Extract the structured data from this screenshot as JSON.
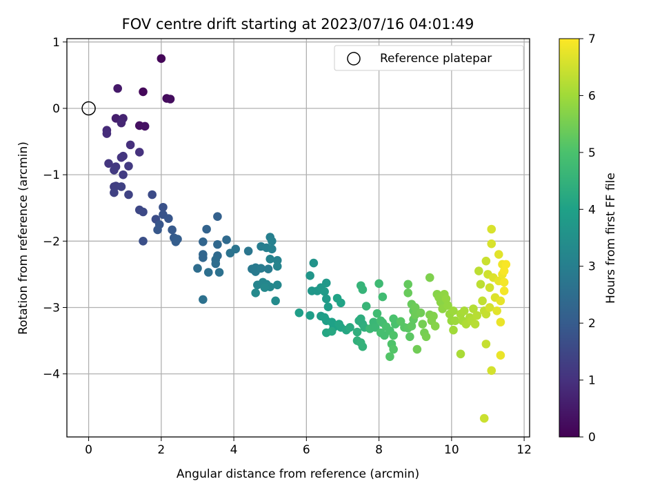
{
  "chart_data": {
    "type": "scatter",
    "title": "FOV centre drift starting at 2023/07/16 04:01:49",
    "xlabel": "Angular distance from reference (arcmin)",
    "ylabel": "Rotation from reference (arcmin)",
    "xlim": [
      -0.6,
      12.15
    ],
    "ylim": [
      -4.95,
      1.05
    ],
    "xticks": [
      0,
      2,
      4,
      6,
      8,
      10,
      12
    ],
    "xtick_labels": [
      "0",
      "2",
      "4",
      "6",
      "8",
      "10",
      "12"
    ],
    "yticks": [
      1,
      0,
      -1,
      -2,
      -3,
      -4
    ],
    "ytick_labels": [
      "1",
      "0",
      "−1",
      "−2",
      "−3",
      "−4"
    ],
    "grid": true,
    "legend": {
      "placement": "upper-right",
      "entries": [
        "Reference platepar"
      ]
    },
    "reference_point": {
      "x": 0,
      "y": 0
    },
    "colorbar": {
      "label": "Hours from first FF file",
      "colormap": "viridis",
      "range": [
        0,
        7
      ],
      "ticks": [
        0,
        1,
        2,
        3,
        4,
        5,
        6,
        7
      ],
      "tick_labels": [
        "0",
        "1",
        "2",
        "3",
        "4",
        "5",
        "6",
        "7"
      ]
    },
    "series": [
      {
        "points": [
          [
            2.0,
            0.75,
            0.1
          ],
          [
            1.5,
            0.25,
            0.15
          ],
          [
            2.15,
            0.15,
            0.2
          ],
          [
            2.25,
            0.14,
            0.25
          ],
          [
            1.4,
            -0.26,
            0.3
          ],
          [
            1.55,
            -0.27,
            0.35
          ],
          [
            0.8,
            0.3,
            0.5
          ],
          [
            0.75,
            -0.15,
            0.6
          ],
          [
            0.9,
            -0.2,
            0.65
          ],
          [
            0.95,
            -0.15,
            0.7
          ],
          [
            0.9,
            -0.22,
            0.75
          ],
          [
            0.5,
            -0.33,
            0.85
          ],
          [
            0.5,
            -0.38,
            0.9
          ],
          [
            1.15,
            -0.55,
            0.95
          ],
          [
            1.4,
            -0.66,
            1.0
          ],
          [
            0.9,
            -0.74,
            1.05
          ],
          [
            0.95,
            -0.72,
            1.1
          ],
          [
            0.55,
            -0.83,
            1.1
          ],
          [
            0.75,
            -0.88,
            1.15
          ],
          [
            0.7,
            -0.93,
            1.2
          ],
          [
            1.1,
            -0.87,
            1.2
          ],
          [
            0.95,
            -1.0,
            1.25
          ],
          [
            0.7,
            -1.18,
            1.3
          ],
          [
            0.75,
            -1.17,
            1.3
          ],
          [
            0.9,
            -1.18,
            1.35
          ],
          [
            0.7,
            -1.27,
            1.35
          ],
          [
            1.1,
            -1.3,
            1.4
          ],
          [
            1.4,
            -1.53,
            1.5
          ],
          [
            1.5,
            -1.56,
            1.55
          ],
          [
            1.75,
            -1.3,
            1.6
          ],
          [
            1.85,
            -1.67,
            1.65
          ],
          [
            1.5,
            -2.0,
            1.7
          ],
          [
            2.05,
            -1.49,
            1.75
          ],
          [
            2.05,
            -1.6,
            1.8
          ],
          [
            2.2,
            -1.66,
            1.85
          ],
          [
            1.95,
            -1.75,
            1.85
          ],
          [
            1.9,
            -1.83,
            1.9
          ],
          [
            2.3,
            -1.83,
            1.95
          ],
          [
            2.35,
            -1.95,
            2.0
          ],
          [
            2.45,
            -1.97,
            2.05
          ],
          [
            2.4,
            -2.01,
            2.05
          ],
          [
            3.55,
            -1.63,
            2.15
          ],
          [
            3.25,
            -1.82,
            2.2
          ],
          [
            3.15,
            -2.01,
            2.25
          ],
          [
            3.15,
            -2.2,
            2.3
          ],
          [
            3.15,
            -2.25,
            2.3
          ],
          [
            3.55,
            -2.05,
            2.35
          ],
          [
            3.8,
            -1.98,
            2.4
          ],
          [
            3.55,
            -2.22,
            2.4
          ],
          [
            3.5,
            -2.28,
            2.45
          ],
          [
            3.5,
            -2.34,
            2.5
          ],
          [
            3.0,
            -2.41,
            2.5
          ],
          [
            3.3,
            -2.47,
            2.55
          ],
          [
            3.6,
            -2.47,
            2.6
          ],
          [
            3.15,
            -2.88,
            2.6
          ],
          [
            3.9,
            -2.18,
            2.65
          ],
          [
            4.05,
            -2.12,
            2.7
          ],
          [
            4.4,
            -2.15,
            2.75
          ],
          [
            4.5,
            -2.42,
            2.8
          ],
          [
            4.6,
            -2.4,
            2.85
          ],
          [
            4.6,
            -2.46,
            2.85
          ],
          [
            4.75,
            -2.41,
            2.9
          ],
          [
            4.95,
            -2.42,
            2.9
          ],
          [
            4.75,
            -2.08,
            2.95
          ],
          [
            4.9,
            -2.1,
            3.0
          ],
          [
            5.0,
            -1.94,
            3.0
          ],
          [
            5.05,
            -2.0,
            3.05
          ],
          [
            5.05,
            -2.12,
            3.05
          ],
          [
            5.0,
            -2.27,
            3.1
          ],
          [
            5.2,
            -2.29,
            3.1
          ],
          [
            5.2,
            -2.38,
            3.15
          ],
          [
            4.65,
            -2.66,
            3.15
          ],
          [
            4.8,
            -2.62,
            3.2
          ],
          [
            4.9,
            -2.65,
            3.2
          ],
          [
            5.0,
            -2.69,
            3.25
          ],
          [
            5.2,
            -2.66,
            3.25
          ],
          [
            4.85,
            -2.7,
            3.3
          ],
          [
            4.6,
            -2.78,
            3.3
          ],
          [
            5.15,
            -2.9,
            3.35
          ],
          [
            6.2,
            -2.33,
            3.6
          ],
          [
            6.1,
            -2.52,
            3.65
          ],
          [
            6.15,
            -2.75,
            3.7
          ],
          [
            6.3,
            -2.75,
            3.7
          ],
          [
            6.4,
            -2.7,
            3.75
          ],
          [
            6.55,
            -2.63,
            3.75
          ],
          [
            6.5,
            -2.76,
            3.8
          ],
          [
            6.55,
            -2.87,
            3.8
          ],
          [
            6.6,
            -2.99,
            3.85
          ],
          [
            6.4,
            -3.13,
            3.85
          ],
          [
            5.8,
            -3.08,
            3.9
          ],
          [
            6.1,
            -3.12,
            3.9
          ],
          [
            6.5,
            -3.15,
            3.95
          ],
          [
            6.55,
            -3.2,
            3.95
          ],
          [
            6.7,
            -3.22,
            4.0
          ],
          [
            6.75,
            -3.3,
            4.0
          ],
          [
            6.85,
            -2.86,
            4.05
          ],
          [
            6.95,
            -2.93,
            4.05
          ],
          [
            6.9,
            -3.25,
            4.1
          ],
          [
            6.95,
            -3.3,
            4.1
          ],
          [
            7.1,
            -3.34,
            4.15
          ],
          [
            6.55,
            -3.38,
            4.15
          ],
          [
            6.7,
            -3.36,
            4.2
          ],
          [
            7.2,
            -3.3,
            4.25
          ],
          [
            7.45,
            -3.2,
            4.3
          ],
          [
            7.5,
            -3.17,
            4.35
          ],
          [
            7.55,
            -3.25,
            4.35
          ],
          [
            7.6,
            -3.3,
            4.4
          ],
          [
            7.4,
            -3.37,
            4.4
          ],
          [
            7.4,
            -3.5,
            4.45
          ],
          [
            7.5,
            -3.53,
            4.5
          ],
          [
            7.55,
            -3.59,
            4.5
          ],
          [
            7.5,
            -2.67,
            4.55
          ],
          [
            7.55,
            -2.73,
            4.55
          ],
          [
            7.65,
            -2.98,
            4.6
          ],
          [
            7.85,
            -3.22,
            4.65
          ],
          [
            7.75,
            -3.32,
            4.7
          ],
          [
            7.9,
            -3.3,
            4.7
          ],
          [
            8.0,
            -2.64,
            4.75
          ],
          [
            8.1,
            -2.84,
            4.8
          ],
          [
            7.95,
            -3.09,
            4.8
          ],
          [
            8.05,
            -3.2,
            4.85
          ],
          [
            8.1,
            -3.23,
            4.85
          ],
          [
            8.05,
            -3.38,
            4.9
          ],
          [
            8.15,
            -3.42,
            4.9
          ],
          [
            8.2,
            -3.29,
            4.95
          ],
          [
            8.3,
            -3.35,
            4.95
          ],
          [
            8.4,
            -3.17,
            5.0
          ],
          [
            8.45,
            -3.25,
            5.0
          ],
          [
            8.4,
            -3.42,
            5.05
          ],
          [
            8.35,
            -3.55,
            5.05
          ],
          [
            8.3,
            -3.74,
            5.1
          ],
          [
            8.4,
            -3.63,
            5.1
          ],
          [
            8.6,
            -3.21,
            5.15
          ],
          [
            8.7,
            -3.3,
            5.15
          ],
          [
            8.8,
            -3.31,
            5.2
          ],
          [
            8.85,
            -3.44,
            5.2
          ],
          [
            8.9,
            -3.28,
            5.25
          ],
          [
            8.95,
            -3.18,
            5.25
          ],
          [
            8.95,
            -3.05,
            5.3
          ],
          [
            8.8,
            -2.65,
            5.3
          ],
          [
            8.8,
            -2.78,
            5.35
          ],
          [
            8.9,
            -2.95,
            5.35
          ],
          [
            9.0,
            -3.0,
            5.4
          ],
          [
            9.0,
            -3.11,
            5.4
          ],
          [
            9.05,
            -3.63,
            5.45
          ],
          [
            9.15,
            -3.08,
            5.45
          ],
          [
            9.2,
            -3.25,
            5.5
          ],
          [
            9.25,
            -3.38,
            5.5
          ],
          [
            9.3,
            -3.44,
            5.55
          ],
          [
            9.4,
            -2.55,
            5.6
          ],
          [
            9.4,
            -3.11,
            5.6
          ],
          [
            9.45,
            -3.2,
            5.65
          ],
          [
            9.5,
            -3.13,
            5.65
          ],
          [
            9.55,
            -3.28,
            5.7
          ],
          [
            9.6,
            -2.8,
            5.7
          ],
          [
            9.65,
            -2.85,
            5.75
          ],
          [
            9.7,
            -2.92,
            5.75
          ],
          [
            9.75,
            -3.02,
            5.8
          ],
          [
            9.8,
            -2.8,
            5.8
          ],
          [
            9.85,
            -2.87,
            5.85
          ],
          [
            9.9,
            -2.97,
            5.85
          ],
          [
            9.95,
            -3.1,
            5.9
          ],
          [
            10.0,
            -3.2,
            5.9
          ],
          [
            10.05,
            -3.05,
            5.95
          ],
          [
            10.1,
            -3.2,
            5.95
          ],
          [
            10.05,
            -3.34,
            6.0
          ],
          [
            10.25,
            -3.1,
            6.05
          ],
          [
            10.3,
            -3.2,
            6.05
          ],
          [
            10.25,
            -3.7,
            6.1
          ],
          [
            10.35,
            -3.05,
            6.1
          ],
          [
            10.4,
            -3.25,
            6.15
          ],
          [
            10.5,
            -3.15,
            6.15
          ],
          [
            10.55,
            -3.2,
            6.2
          ],
          [
            10.6,
            -3.02,
            6.2
          ],
          [
            10.65,
            -3.25,
            6.25
          ],
          [
            10.7,
            -3.12,
            6.25
          ],
          [
            10.75,
            -2.45,
            6.3
          ],
          [
            10.8,
            -2.65,
            6.3
          ],
          [
            10.85,
            -2.9,
            6.35
          ],
          [
            10.9,
            -3.05,
            6.35
          ],
          [
            10.95,
            -3.1,
            6.4
          ],
          [
            10.95,
            -3.55,
            6.4
          ],
          [
            10.9,
            -4.67,
            6.45
          ],
          [
            10.95,
            -2.3,
            6.45
          ],
          [
            11.0,
            -2.5,
            6.5
          ],
          [
            11.05,
            -2.7,
            6.5
          ],
          [
            11.05,
            -3.0,
            6.55
          ],
          [
            11.1,
            -3.95,
            6.55
          ],
          [
            11.1,
            -1.82,
            6.6
          ],
          [
            11.1,
            -2.04,
            6.6
          ],
          [
            11.15,
            -2.55,
            6.65
          ],
          [
            11.2,
            -2.85,
            6.65
          ],
          [
            11.25,
            -3.05,
            6.7
          ],
          [
            11.3,
            -2.2,
            6.7
          ],
          [
            11.3,
            -2.6,
            6.75
          ],
          [
            11.35,
            -2.9,
            6.75
          ],
          [
            11.35,
            -3.22,
            6.8
          ],
          [
            11.35,
            -3.72,
            6.8
          ],
          [
            11.4,
            -2.35,
            6.85
          ],
          [
            11.4,
            -2.5,
            6.85
          ],
          [
            11.45,
            -2.62,
            6.9
          ],
          [
            11.45,
            -2.75,
            6.9
          ],
          [
            11.5,
            -2.35,
            6.95
          ],
          [
            11.45,
            -2.45,
            6.95
          ]
        ]
      }
    ]
  }
}
